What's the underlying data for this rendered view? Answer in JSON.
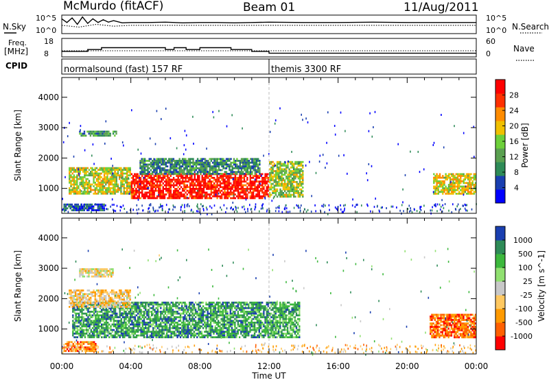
{
  "header": {
    "site": "McMurdo (fitACF)",
    "beam": "Beam 01",
    "date": "11/Aug/2011"
  },
  "chart_data": [
    {
      "type": "line",
      "panel": "noise",
      "left_label": "N.Sky",
      "right_label": "N.Search",
      "left_ticks": [
        "10^5",
        "10^0"
      ],
      "right_ticks": [
        "10^5",
        "10^0"
      ],
      "x_range_hours": [
        0,
        24
      ],
      "series": [
        {
          "name": "N.Sky",
          "style": "solid",
          "x": [
            0,
            0.3,
            0.6,
            0.9,
            1.2,
            1.5,
            1.8,
            2.1,
            2.4,
            2.7,
            3.0,
            3.5,
            4.0,
            5,
            6,
            7,
            8,
            9,
            10,
            11,
            12,
            14,
            16,
            18,
            20,
            22,
            24
          ],
          "y": [
            0.8,
            0.6,
            0.85,
            0.5,
            0.9,
            0.55,
            0.8,
            0.6,
            0.75,
            0.62,
            0.7,
            0.58,
            0.6,
            0.6,
            0.62,
            0.58,
            0.6,
            0.6,
            0.58,
            0.6,
            0.62,
            0.6,
            0.6,
            0.62,
            0.6,
            0.6,
            0.6
          ]
        },
        {
          "name": "N.Search",
          "style": "dotted",
          "x": [
            0,
            1,
            2,
            3,
            4,
            6,
            8,
            10,
            12,
            14,
            16,
            18,
            20,
            22,
            24
          ],
          "y": [
            0.45,
            0.35,
            0.5,
            0.4,
            0.45,
            0.45,
            0.45,
            0.45,
            0.45,
            0.45,
            0.45,
            0.45,
            0.45,
            0.45,
            0.45
          ]
        }
      ]
    },
    {
      "type": "line",
      "panel": "frequency",
      "left_label_1": "Freq.",
      "left_label_2": "[MHz]",
      "right_label": "Nave",
      "left_ticks": [
        "18",
        "8"
      ],
      "right_ticks": [
        "60",
        "0"
      ],
      "x_range_hours": [
        0,
        24
      ],
      "series": [
        {
          "name": "Freq.",
          "style": "solid",
          "x": [
            0,
            1.5,
            1.5,
            2.3,
            2.3,
            6.0,
            6.0,
            6.5,
            6.5,
            7.2,
            7.2,
            8.0,
            8.0,
            9.8,
            9.8,
            11.0,
            11.0,
            12.0,
            12.0,
            24
          ],
          "y": [
            11,
            11,
            12,
            12,
            13,
            13,
            12,
            12,
            13,
            13,
            12,
            12,
            13,
            13,
            12,
            12,
            11,
            11,
            10,
            10
          ]
        },
        {
          "name": "Nave",
          "style": "dotted",
          "x": [
            0,
            24
          ],
          "y": [
            20,
            20
          ]
        }
      ]
    },
    {
      "type": "table",
      "panel": "cpid",
      "label": "CPID",
      "segments": [
        {
          "start_hour": 0,
          "text": "normalsound (fast) 157 RF"
        },
        {
          "start_hour": 12,
          "text": "themis 3300 RF"
        }
      ]
    },
    {
      "type": "heatmap",
      "panel": "power",
      "ylabel": "Slant Range [km]",
      "colorbar_label": "Power [dB]",
      "colorbar_ticks": [
        28,
        24,
        20,
        16,
        12,
        8,
        4
      ],
      "colorbar_range": [
        0,
        32
      ],
      "colors": [
        "#0000ff",
        "#1a3fb0",
        "#2e8b57",
        "#5aa050",
        "#6dd03a",
        "#f0c000",
        "#ff8c00",
        "#ff3000",
        "#ff0000"
      ],
      "y_ticks": [
        1000,
        2000,
        3000,
        4000
      ],
      "ylim": [
        180,
        4650
      ],
      "x_range_hours": [
        0,
        24
      ],
      "patches": [
        {
          "x0": 0.4,
          "x1": 4.0,
          "y0": 800,
          "y1": 1700,
          "level": 0.55
        },
        {
          "x0": 4.0,
          "x1": 12.0,
          "y0": 650,
          "y1": 1500,
          "level": 0.92
        },
        {
          "x0": 4.5,
          "x1": 11.5,
          "y0": 1450,
          "y1": 2000,
          "level": 0.3
        },
        {
          "x0": 12.0,
          "x1": 14.0,
          "y0": 700,
          "y1": 1900,
          "level": 0.5
        },
        {
          "x0": 21.5,
          "x1": 24,
          "y0": 800,
          "y1": 1500,
          "level": 0.6
        },
        {
          "x0": 1.0,
          "x1": 3.2,
          "y0": 2700,
          "y1": 2900,
          "level": 0.35
        },
        {
          "x0": 0.1,
          "x1": 2.5,
          "y0": 250,
          "y1": 500,
          "level": 0.2
        }
      ]
    },
    {
      "type": "heatmap",
      "panel": "velocity",
      "ylabel": "Slant Range [km]",
      "colorbar_label": "Velocity [m s^-1]",
      "colorbar_ticks": [
        1000,
        500,
        100,
        25,
        -25,
        -100,
        -500,
        -1000
      ],
      "colorbar_range": [
        -1250,
        1250
      ],
      "colors": [
        "#ff0000",
        "#ff6000",
        "#ff9a00",
        "#ffc860",
        "#c8c8c8",
        "#90e070",
        "#3cb83c",
        "#2e8b57",
        "#1a3fb0"
      ],
      "y_ticks": [
        1000,
        2000,
        3000,
        4000
      ],
      "ylim": [
        180,
        4650
      ],
      "x_range_hours": [
        0,
        24
      ],
      "patches": [
        {
          "x0": 0.6,
          "x1": 12.0,
          "y0": 700,
          "y1": 1900,
          "level": 0.78
        },
        {
          "x0": 0.4,
          "x1": 4.0,
          "y0": 1700,
          "y1": 2300,
          "level": 0.4
        },
        {
          "x0": 12.0,
          "x1": 13.8,
          "y0": 700,
          "y1": 1900,
          "level": 0.75
        },
        {
          "x0": 21.3,
          "x1": 24,
          "y0": 700,
          "y1": 1500,
          "level": 0.2
        },
        {
          "x0": 1.0,
          "x1": 3.0,
          "y0": 2700,
          "y1": 3000,
          "level": 0.45
        },
        {
          "x0": 0.1,
          "x1": 2.0,
          "y0": 250,
          "y1": 600,
          "level": 0.25
        }
      ]
    }
  ],
  "x_axis": {
    "label": "Time UT",
    "ticks": [
      "00:00",
      "04:00",
      "08:00",
      "12:00",
      "16:00",
      "20:00",
      "00:00"
    ]
  }
}
